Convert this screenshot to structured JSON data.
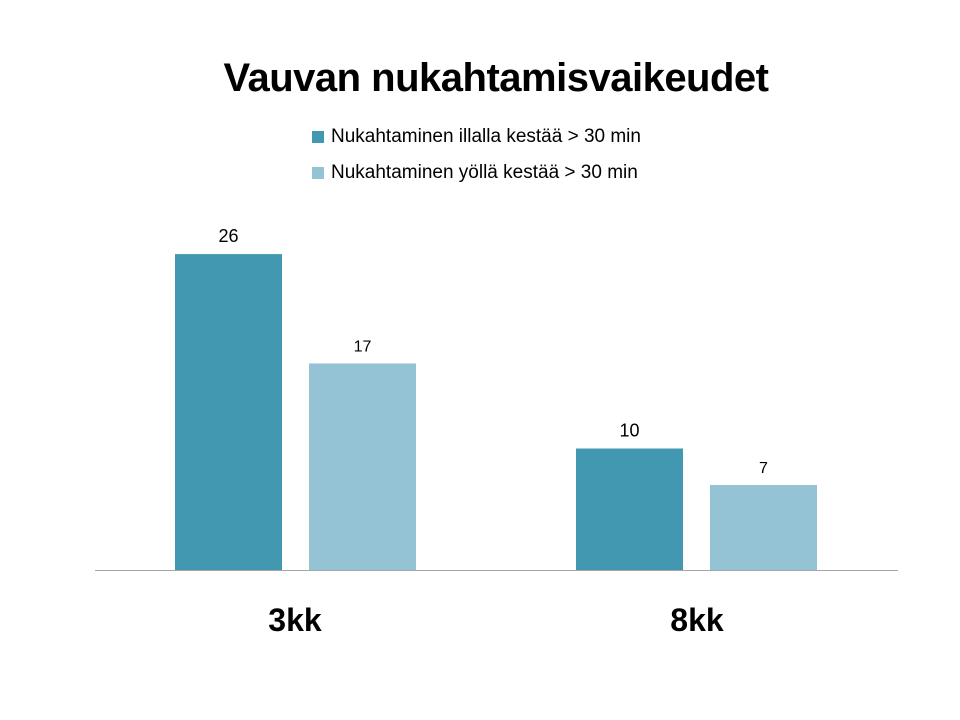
{
  "chart_data": {
    "type": "bar",
    "title": "Vauvan nukahtamisvaikeudet",
    "xlabel": "",
    "ylabel": "",
    "categories": [
      "3kk",
      "8kk"
    ],
    "series": [
      {
        "name": "Nukahtaminen illalla kestää > 30 min",
        "values": [
          26,
          10
        ],
        "color": "#4298B0"
      },
      {
        "name": "Nukahtaminen yöllä kestää > 30 min",
        "values": [
          17,
          7
        ],
        "color": "#93C3D4"
      }
    ],
    "ylim": [
      0,
      30
    ],
    "grid": false,
    "legend_position": "top",
    "axis_color": "#A6A6A6"
  }
}
